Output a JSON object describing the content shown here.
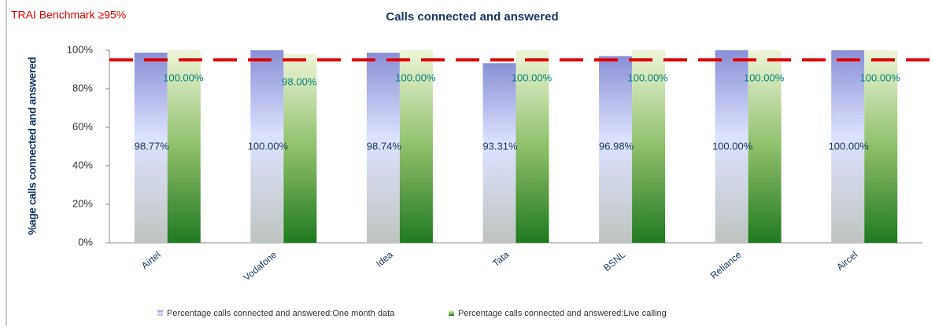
{
  "chart_data": {
    "type": "bar",
    "title": "Calls connected and answered",
    "annotation": "TRAI Benchmark ≥95%",
    "benchmark": 95,
    "ylabel": "%age calls connected and answered",
    "categories": [
      "Airtel",
      "Vodafone",
      "Idea",
      "Tata",
      "BSNL",
      "Reliance",
      "Aircel"
    ],
    "series": [
      {
        "name": "Percentage calls connected and answered:One month data",
        "color": "#8a8fd6",
        "values": [
          98.77,
          100,
          98.74,
          93.31,
          96.98,
          100,
          100
        ],
        "value_labels": [
          "98.77%",
          "100.00%",
          "98.74%",
          "93.31%",
          "96.98%",
          "100.00%",
          "100.00%"
        ]
      },
      {
        "name": "Percentage calls connected and answered:Live calling",
        "color": "#1f7a1f",
        "values": [
          100,
          98,
          100,
          100,
          100,
          100,
          100
        ],
        "value_labels": [
          "100.00%",
          "98.00%",
          "100.00%",
          "100.00%",
          "100.00%",
          "100.00%",
          "100.00%"
        ]
      }
    ],
    "ylim": [
      0,
      100
    ],
    "yticks": [
      {
        "value": 0,
        "label": "0%"
      },
      {
        "value": 20,
        "label": "20%"
      },
      {
        "value": 40,
        "label": "40%"
      },
      {
        "value": 60,
        "label": "60%"
      },
      {
        "value": 80,
        "label": "80%"
      },
      {
        "value": 100,
        "label": "100%"
      }
    ]
  }
}
